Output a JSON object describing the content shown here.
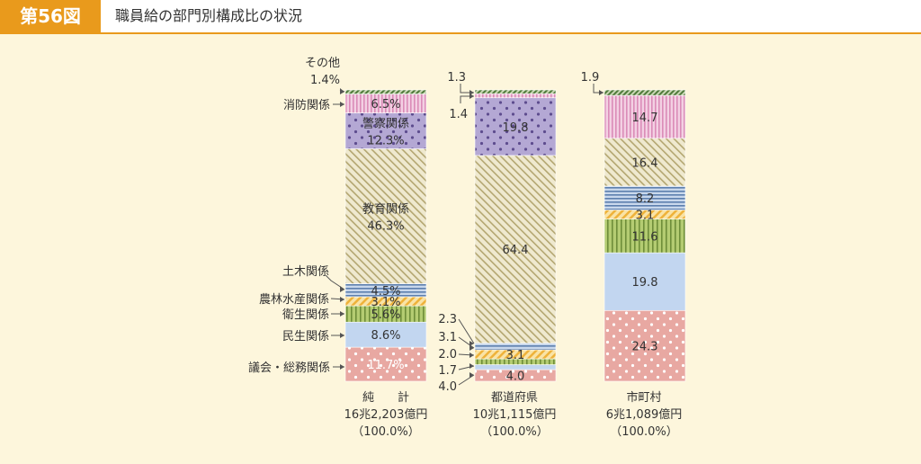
{
  "figure": {
    "label": "第56図",
    "title": "職員給の部門別構成比の状況"
  },
  "colors": {
    "accent": "#e99a1c",
    "background": "#fdf6dc"
  },
  "chart_data": {
    "type": "bar",
    "stacked": true,
    "orientation": "vertical",
    "unit": "%",
    "columns": [
      {
        "label": "純　　計",
        "amount": "16兆2,203億円",
        "share": "（100.0%）"
      },
      {
        "label": "都道府県",
        "amount": "10兆1,115億円",
        "share": "（100.0%）"
      },
      {
        "label": "市町村",
        "amount": "6兆1,089億円",
        "share": "（100.0%）"
      }
    ],
    "series": [
      {
        "name": "議会・総務関係",
        "color": "#e8a8a2",
        "values": [
          11.7,
          4.0,
          24.3
        ],
        "labels": [
          "11.7%",
          "4.0",
          "24.3"
        ]
      },
      {
        "name": "民生関係",
        "color": "#c2d6f0",
        "values": [
          8.6,
          1.7,
          19.8
        ],
        "labels": [
          "8.6%",
          "1.7",
          "19.8"
        ]
      },
      {
        "name": "衛生関係",
        "color": "#b4cc72",
        "values": [
          5.6,
          2.0,
          11.6
        ],
        "labels": [
          "5.6%",
          "2.0",
          "11.6"
        ]
      },
      {
        "name": "農林水産関係",
        "color": "#f4cc74",
        "values": [
          3.1,
          3.1,
          3.1
        ],
        "labels": [
          "3.1%",
          "3.1",
          "3.1"
        ]
      },
      {
        "name": "土木関係",
        "color": "#a6bcd8",
        "values": [
          4.5,
          2.3,
          8.2
        ],
        "labels": [
          "4.5%",
          "2.3",
          "8.2"
        ]
      },
      {
        "name": "教育関係",
        "color": "#e6dfbd",
        "values": [
          46.3,
          64.4,
          16.4
        ],
        "labels": [
          "教育関係|46.3%",
          "64.4",
          "16.4"
        ]
      },
      {
        "name": "警察関係",
        "color": "#b4a8d4",
        "values": [
          12.3,
          19.8,
          0
        ],
        "labels": [
          "警察関係|12.3%",
          "19.8",
          ""
        ]
      },
      {
        "name": "消防関係",
        "color": "#ebb6d4",
        "values": [
          6.5,
          1.4,
          14.7
        ],
        "labels": [
          "6.5%",
          "1.4",
          "14.7"
        ]
      },
      {
        "name": "その他",
        "color": "#7e9e66",
        "values": [
          1.4,
          1.3,
          1.9
        ],
        "labels": [
          "1.4%",
          "1.3",
          "1.9"
        ]
      }
    ],
    "category_labels": [
      {
        "series": "その他",
        "text": "その他"
      },
      {
        "series": "消防関係",
        "text": "消防関係"
      },
      {
        "series": "土木関係",
        "text": "土木関係"
      },
      {
        "series": "農林水産関係",
        "text": "農林水産関係"
      },
      {
        "series": "衛生関係",
        "text": "衛生関係"
      },
      {
        "series": "民生関係",
        "text": "民生関係"
      },
      {
        "series": "議会・総務関係",
        "text": "議会・総務関係"
      }
    ]
  }
}
